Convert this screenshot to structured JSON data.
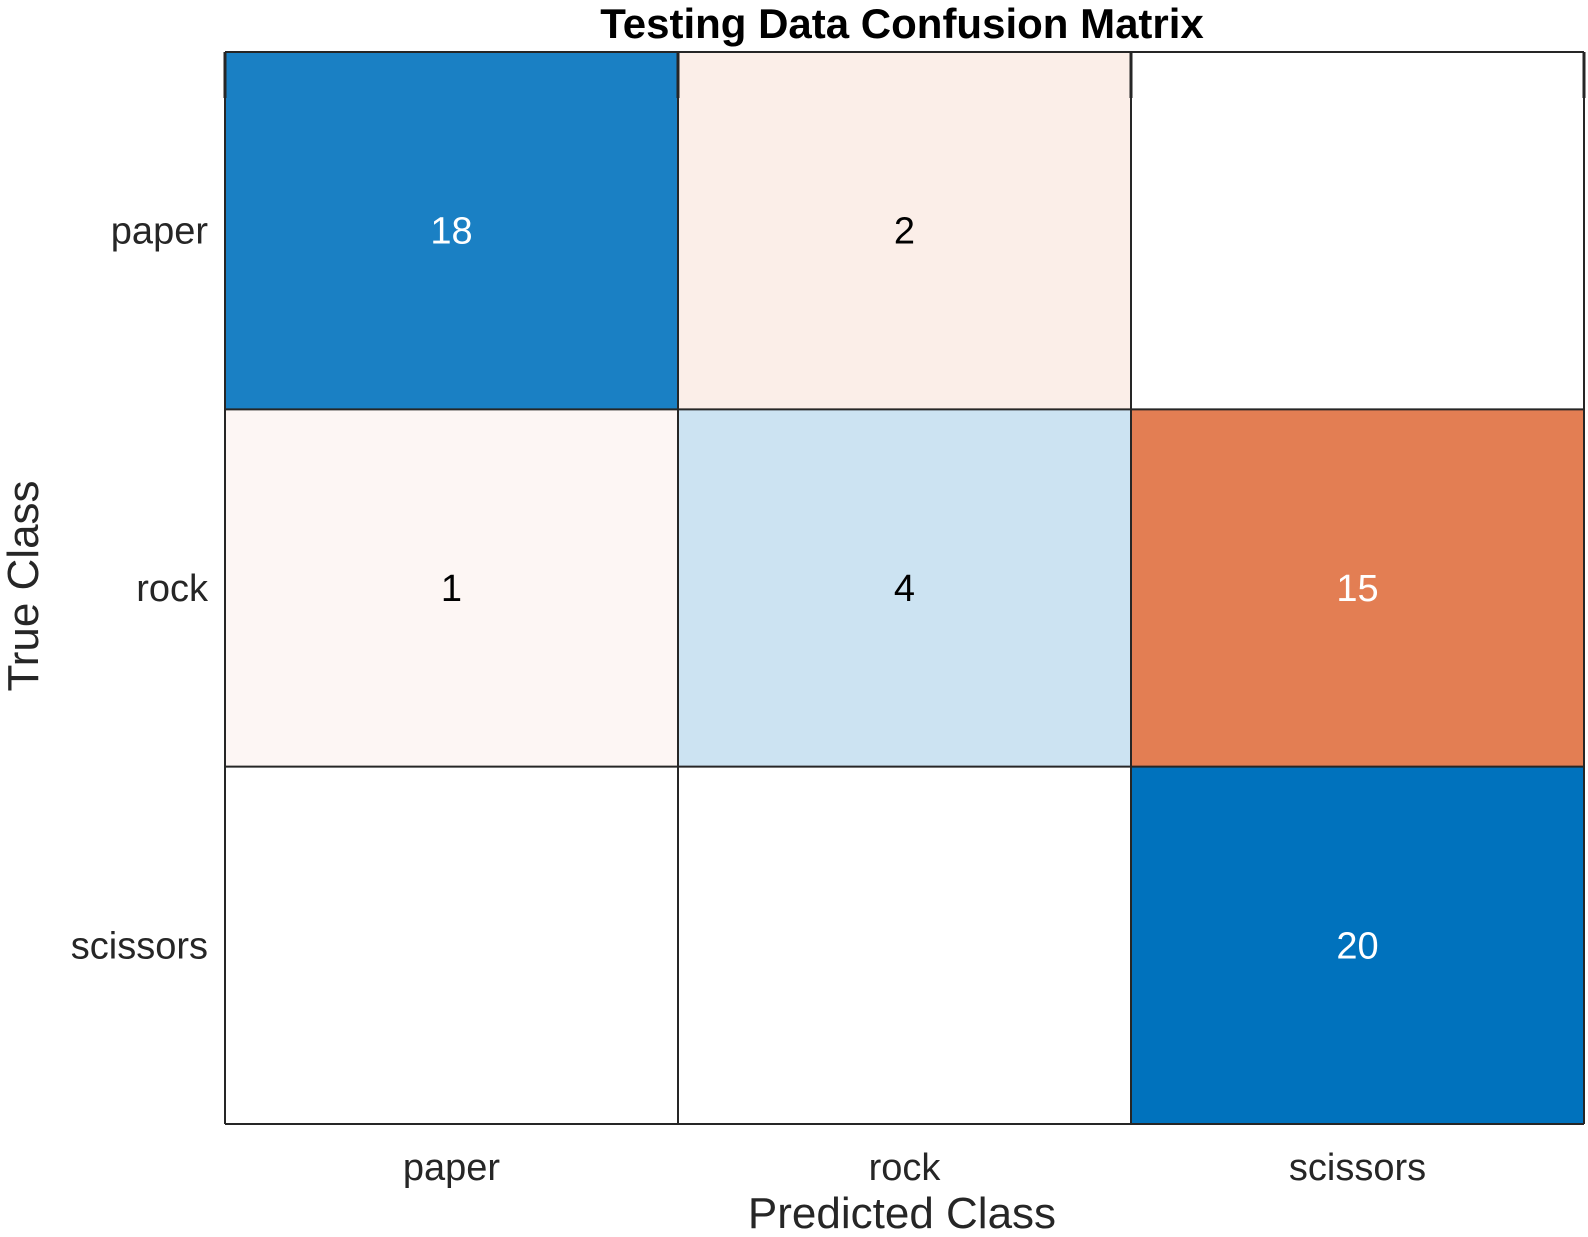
{
  "chart_data": {
    "type": "heatmap",
    "title": "Testing Data Confusion Matrix",
    "xlabel": "Predicted Class",
    "ylabel": "True Class",
    "x_categories": [
      "paper",
      "rock",
      "scissors"
    ],
    "y_categories": [
      "paper",
      "rock",
      "scissors"
    ],
    "matrix": [
      [
        18,
        2,
        null
      ],
      [
        1,
        4,
        15
      ],
      [
        null,
        null,
        20
      ]
    ],
    "colors": {
      "correct_max": "#0072BD",
      "correct_min": "#ffffff",
      "error_max": "#D95319",
      "error_min": "#ffffff",
      "grid_line": "#262626",
      "text_dark": "#000000",
      "text_light": "#ffffff"
    },
    "grid": true,
    "legend": "none"
  }
}
